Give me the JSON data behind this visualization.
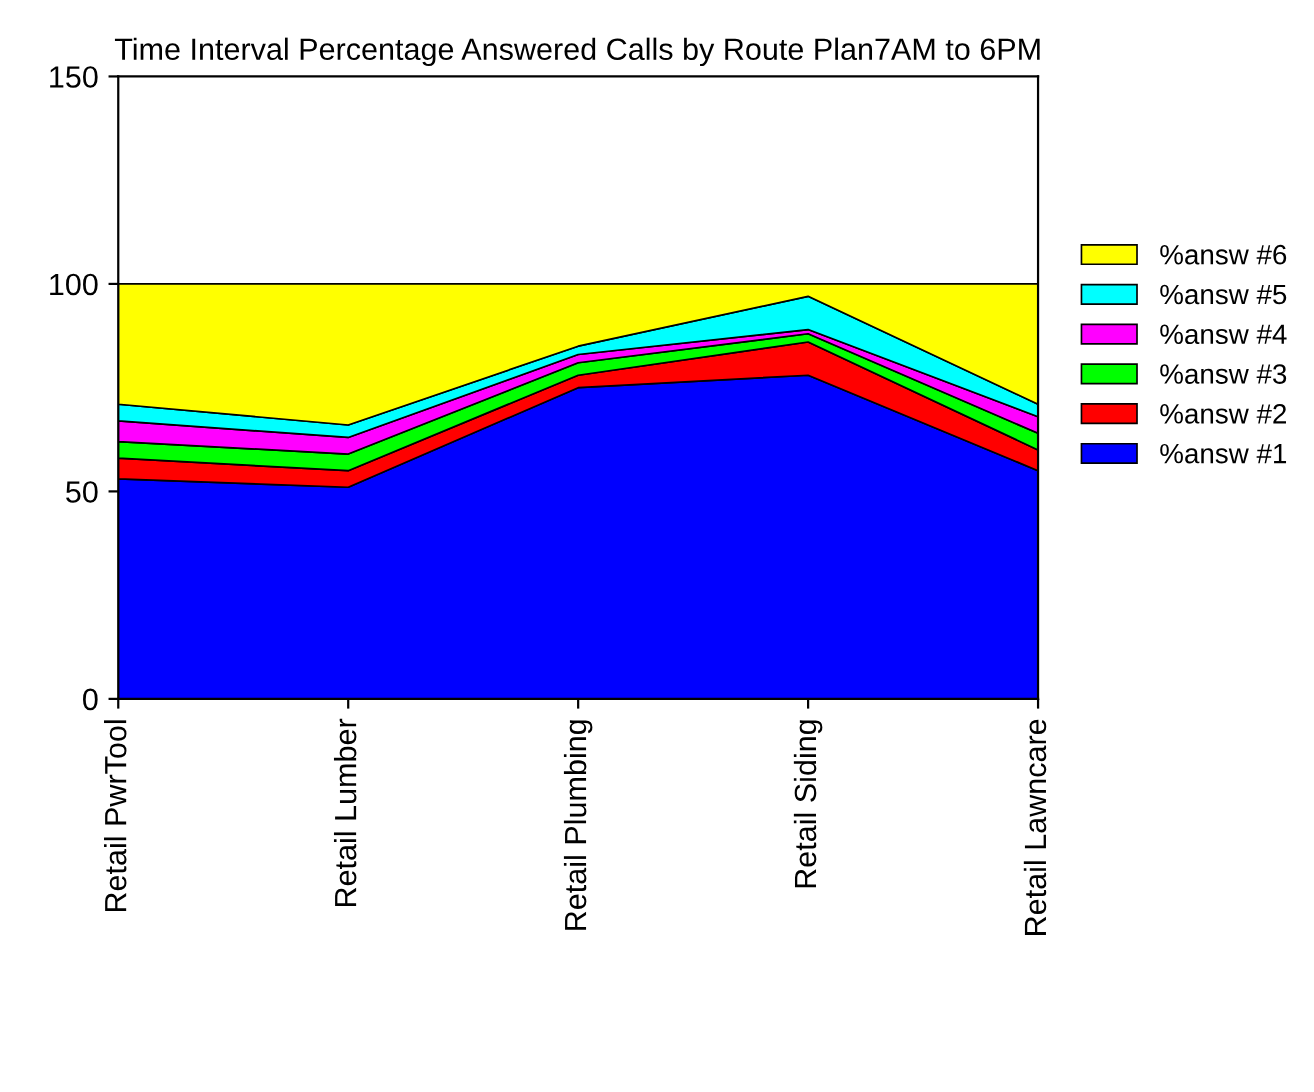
{
  "chart_data": {
    "type": "area",
    "title": "Time Interval Percentage Answered Calls by Route Plan7AM to 6PM",
    "stacked": true,
    "categories": [
      "Retail PwrTool",
      "Retail Lumber",
      "Retail Plumbing",
      "Retail Siding",
      "Retail Lawncare"
    ],
    "series": [
      {
        "name": "%answ #1",
        "color": "#0000ff",
        "values": [
          53,
          51,
          75,
          78,
          55
        ]
      },
      {
        "name": "%answ #2",
        "color": "#ff0000",
        "values": [
          5,
          4,
          3,
          8,
          5
        ]
      },
      {
        "name": "%answ #3",
        "color": "#00ff00",
        "values": [
          4,
          4,
          3,
          2,
          4
        ]
      },
      {
        "name": "%answ #4",
        "color": "#ff00ff",
        "values": [
          5,
          4,
          2,
          1,
          4
        ]
      },
      {
        "name": "%answ #5",
        "color": "#00ffff",
        "values": [
          4,
          3,
          2,
          8,
          3
        ]
      },
      {
        "name": "%answ #6",
        "color": "#ffff00",
        "values": [
          29,
          34,
          15,
          3,
          29
        ]
      }
    ],
    "ylim": [
      0,
      150
    ],
    "yticks": [
      0,
      50,
      100,
      150
    ],
    "grid": false,
    "legend": "right"
  }
}
